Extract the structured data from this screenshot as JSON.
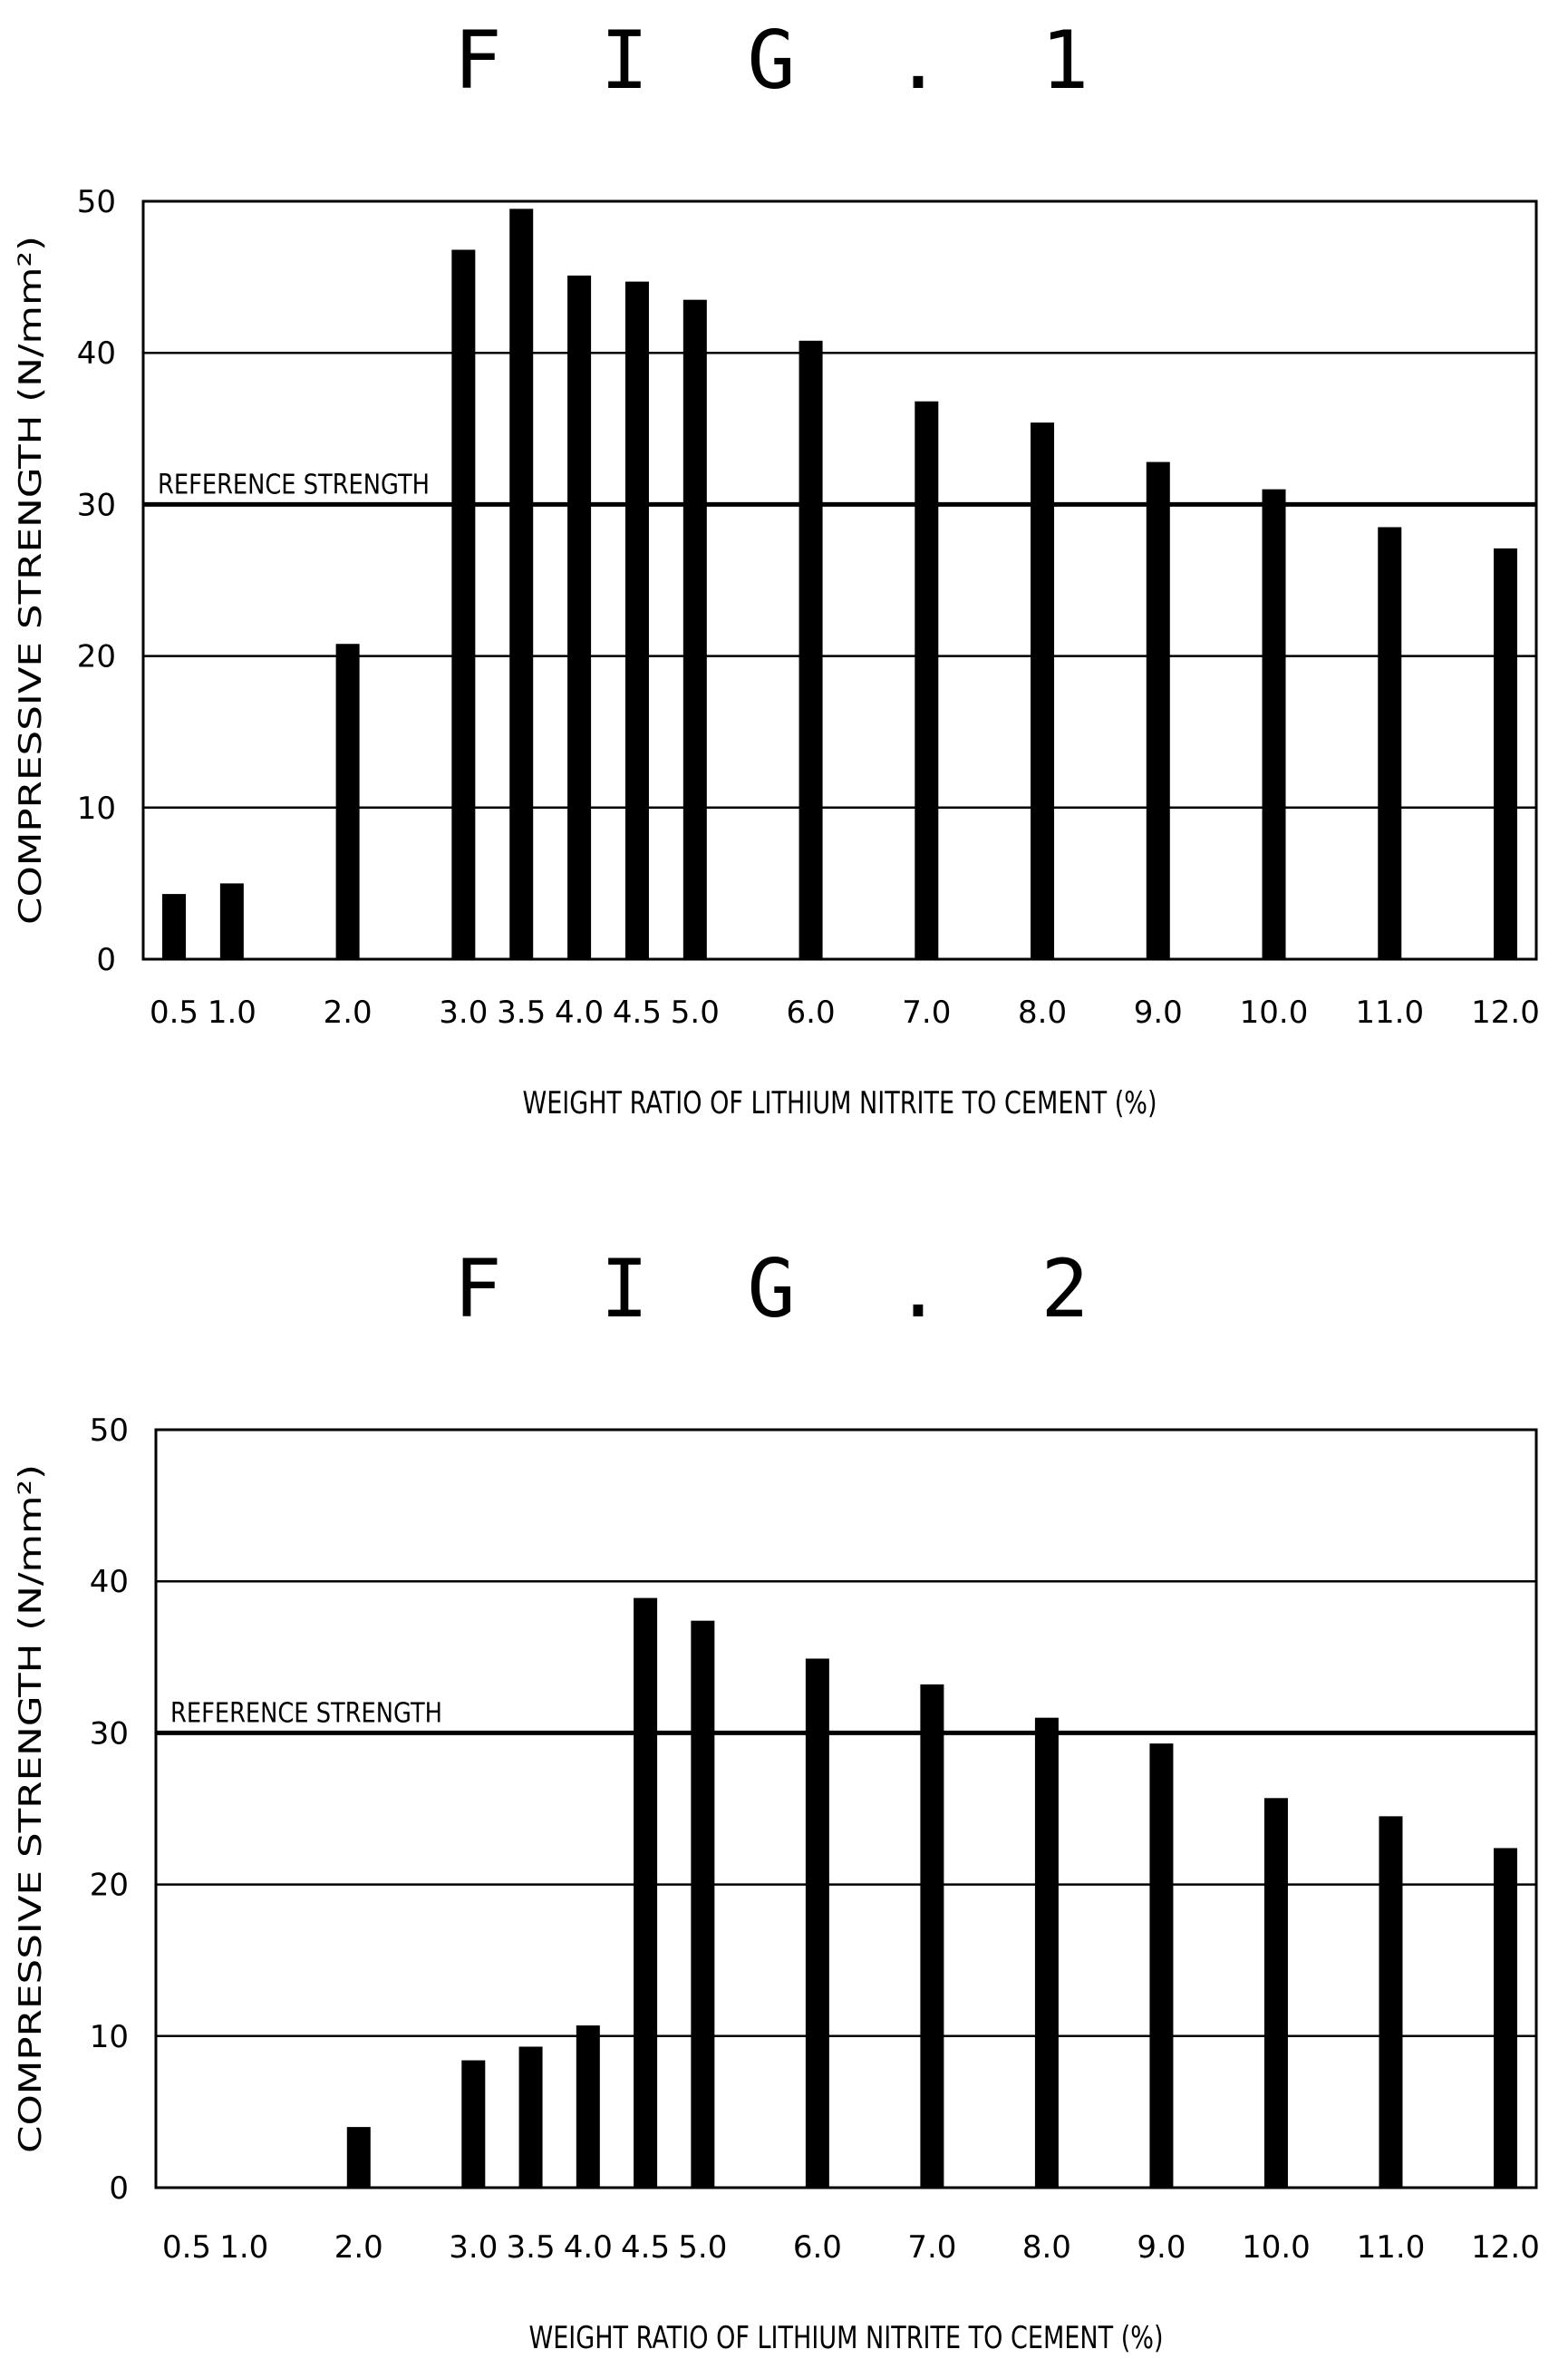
{
  "chart_data": [
    {
      "type": "bar",
      "title": "F I G . 1",
      "xlabel": "WEIGHT RATIO OF LITHIUM NITRITE TO CEMENT (%)",
      "ylabel": "COMPRESSIVE STRENGTH (N/mm²)",
      "ylim": [
        0,
        50
      ],
      "yticks": [
        "0",
        "10",
        "20",
        "30",
        "40",
        "50"
      ],
      "grid": true,
      "reference": {
        "label": "REFERENCE STRENGTH",
        "value": 30
      },
      "x": [
        0.5,
        1.0,
        2.0,
        3.0,
        3.5,
        4.0,
        4.5,
        5.0,
        6.0,
        7.0,
        8.0,
        9.0,
        10.0,
        11.0,
        12.0
      ],
      "categories": [
        "0.5",
        "1.0",
        "2.0",
        "3.0",
        "3.5",
        "4.0",
        "4.5",
        "5.0",
        "6.0",
        "7.0",
        "8.0",
        "9.0",
        "10.0",
        "11.0",
        "12.0"
      ],
      "values": [
        4.3,
        5.0,
        20.8,
        46.8,
        49.5,
        45.1,
        44.7,
        43.5,
        40.8,
        36.8,
        35.4,
        32.8,
        31.0,
        28.5,
        27.1
      ]
    },
    {
      "type": "bar",
      "title": "F I G . 2",
      "xlabel": "WEIGHT RATIO OF LITHIUM NITRITE TO CEMENT (%)",
      "ylabel": "COMPRESSIVE STRENGTH (N/mm²)",
      "ylim": [
        0,
        50
      ],
      "yticks": [
        "0",
        "10",
        "20",
        "30",
        "40",
        "50"
      ],
      "grid": true,
      "reference": {
        "label": "REFERENCE STRENGTH",
        "value": 30
      },
      "x": [
        0.5,
        1.0,
        2.0,
        3.0,
        3.5,
        4.0,
        4.5,
        5.0,
        6.0,
        7.0,
        8.0,
        9.0,
        10.0,
        11.0,
        12.0
      ],
      "categories": [
        "0.5",
        "1.0",
        "2.0",
        "3.0",
        "3.5",
        "4.0",
        "4.5",
        "5.0",
        "6.0",
        "7.0",
        "8.0",
        "9.0",
        "10.0",
        "11.0",
        "12.0"
      ],
      "values": [
        0,
        0,
        4.0,
        8.4,
        9.3,
        10.7,
        38.9,
        37.4,
        34.9,
        33.2,
        31.0,
        29.3,
        25.7,
        24.5,
        22.4
      ]
    }
  ]
}
